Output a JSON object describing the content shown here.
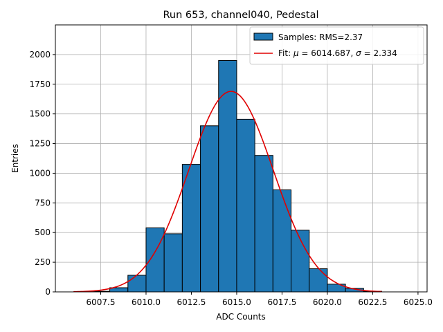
{
  "chart_data": {
    "type": "bar",
    "title": "Run 653, channel040, Pedestal",
    "xlabel": "ADC Counts",
    "ylabel": "Entries",
    "xlim": [
      6005.0,
      6025.5
    ],
    "ylim": [
      0,
      2250
    ],
    "xticks": [
      6007.5,
      6010.0,
      6012.5,
      6015.0,
      6017.5,
      6020.0,
      6022.5,
      6025.0
    ],
    "xtick_labels": [
      "6007.5",
      "6010.0",
      "6012.5",
      "6015.0",
      "6017.5",
      "6020.0",
      "6022.5",
      "6025.0"
    ],
    "yticks": [
      0,
      250,
      500,
      750,
      1000,
      1250,
      1500,
      1750,
      2000
    ],
    "ytick_labels": [
      "0",
      "250",
      "500",
      "750",
      "1000",
      "1250",
      "1500",
      "1750",
      "2000"
    ],
    "grid": true,
    "legend_position": "top-right",
    "bins": [
      {
        "x0": 6007.0,
        "x1": 6008.0,
        "value": 5
      },
      {
        "x0": 6008.0,
        "x1": 6009.0,
        "value": 35
      },
      {
        "x0": 6009.0,
        "x1": 6010.0,
        "value": 140
      },
      {
        "x0": 6010.0,
        "x1": 6011.0,
        "value": 540
      },
      {
        "x0": 6011.0,
        "x1": 6012.0,
        "value": 490
      },
      {
        "x0": 6012.0,
        "x1": 6013.0,
        "value": 1075
      },
      {
        "x0": 6013.0,
        "x1": 6014.0,
        "value": 1400
      },
      {
        "x0": 6014.0,
        "x1": 6015.0,
        "value": 1950
      },
      {
        "x0": 6015.0,
        "x1": 6016.0,
        "value": 1455
      },
      {
        "x0": 6016.0,
        "x1": 6017.0,
        "value": 1150
      },
      {
        "x0": 6017.0,
        "x1": 6018.0,
        "value": 860
      },
      {
        "x0": 6018.0,
        "x1": 6019.0,
        "value": 520
      },
      {
        "x0": 6019.0,
        "x1": 6020.0,
        "value": 195
      },
      {
        "x0": 6020.0,
        "x1": 6021.0,
        "value": 65
      },
      {
        "x0": 6021.0,
        "x1": 6022.0,
        "value": 30
      },
      {
        "x0": 6022.0,
        "x1": 6023.0,
        "value": 5
      }
    ],
    "fit": {
      "mu": 6014.687,
      "sigma": 2.334,
      "peak": 1690,
      "x_range": [
        6006.0,
        6023.0
      ],
      "color": "#e00000"
    },
    "bar_color": "#1f77b4",
    "series": [
      {
        "name": "Samples: RMS=2.37",
        "type": "histogram"
      },
      {
        "name": "Fit: μ = 6014.687, σ = 2.334",
        "type": "line"
      }
    ],
    "legend": {
      "samples_label": "Samples: RMS=2.37",
      "fit_prefix": "Fit: ",
      "mu_symbol": "μ",
      "mu_text": " = 6014.687, ",
      "sigma_symbol": "σ",
      "sigma_text": " = 2.334"
    }
  }
}
